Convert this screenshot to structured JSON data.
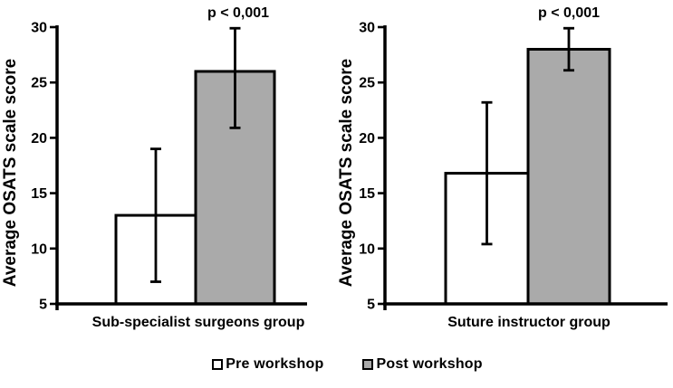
{
  "chart_data": [
    {
      "type": "bar",
      "title": "",
      "categories": [
        "Pre workshop",
        "Post workshop"
      ],
      "values": [
        13,
        26
      ],
      "errors": [
        {
          "low": 7,
          "high": 19
        },
        {
          "low": 20.9,
          "high": 29.9
        }
      ],
      "bar_fills": [
        "#ffffff",
        "#aaaaaa"
      ],
      "bar_stroke": "#000000",
      "annotation": "p < 0,001",
      "annotation_over": "Post workshop",
      "xlabel": "Sub-specialist surgeons group",
      "ylabel": "Average OSATS scale score",
      "ylim": [
        5,
        30
      ],
      "yticks": [
        5,
        10,
        15,
        20,
        25,
        30
      ],
      "grid": false,
      "legend_position": "bottom"
    },
    {
      "type": "bar",
      "title": "",
      "categories": [
        "Pre workshop",
        "Post workshop"
      ],
      "values": [
        16.8,
        28
      ],
      "errors": [
        {
          "low": 10.4,
          "high": 23.2
        },
        {
          "low": 26.1,
          "high": 29.9
        }
      ],
      "bar_fills": [
        "#ffffff",
        "#aaaaaa"
      ],
      "bar_stroke": "#000000",
      "annotation": "p < 0,001",
      "annotation_over": "Post workshop",
      "xlabel": "Suture instructor group",
      "ylabel": "Average OSATS scale score",
      "ylim": [
        5,
        30
      ],
      "yticks": [
        5,
        10,
        15,
        20,
        25,
        30
      ],
      "grid": false,
      "legend_position": "bottom"
    }
  ],
  "legend": {
    "items": [
      {
        "label": "Pre workshop",
        "fill": "#ffffff",
        "border": "#000000"
      },
      {
        "label": "Post workshop",
        "fill": "#aaaaaa",
        "border": "#000000"
      }
    ]
  },
  "colors": {
    "axis": "#000000",
    "text": "#000000",
    "background": "#ffffff"
  }
}
